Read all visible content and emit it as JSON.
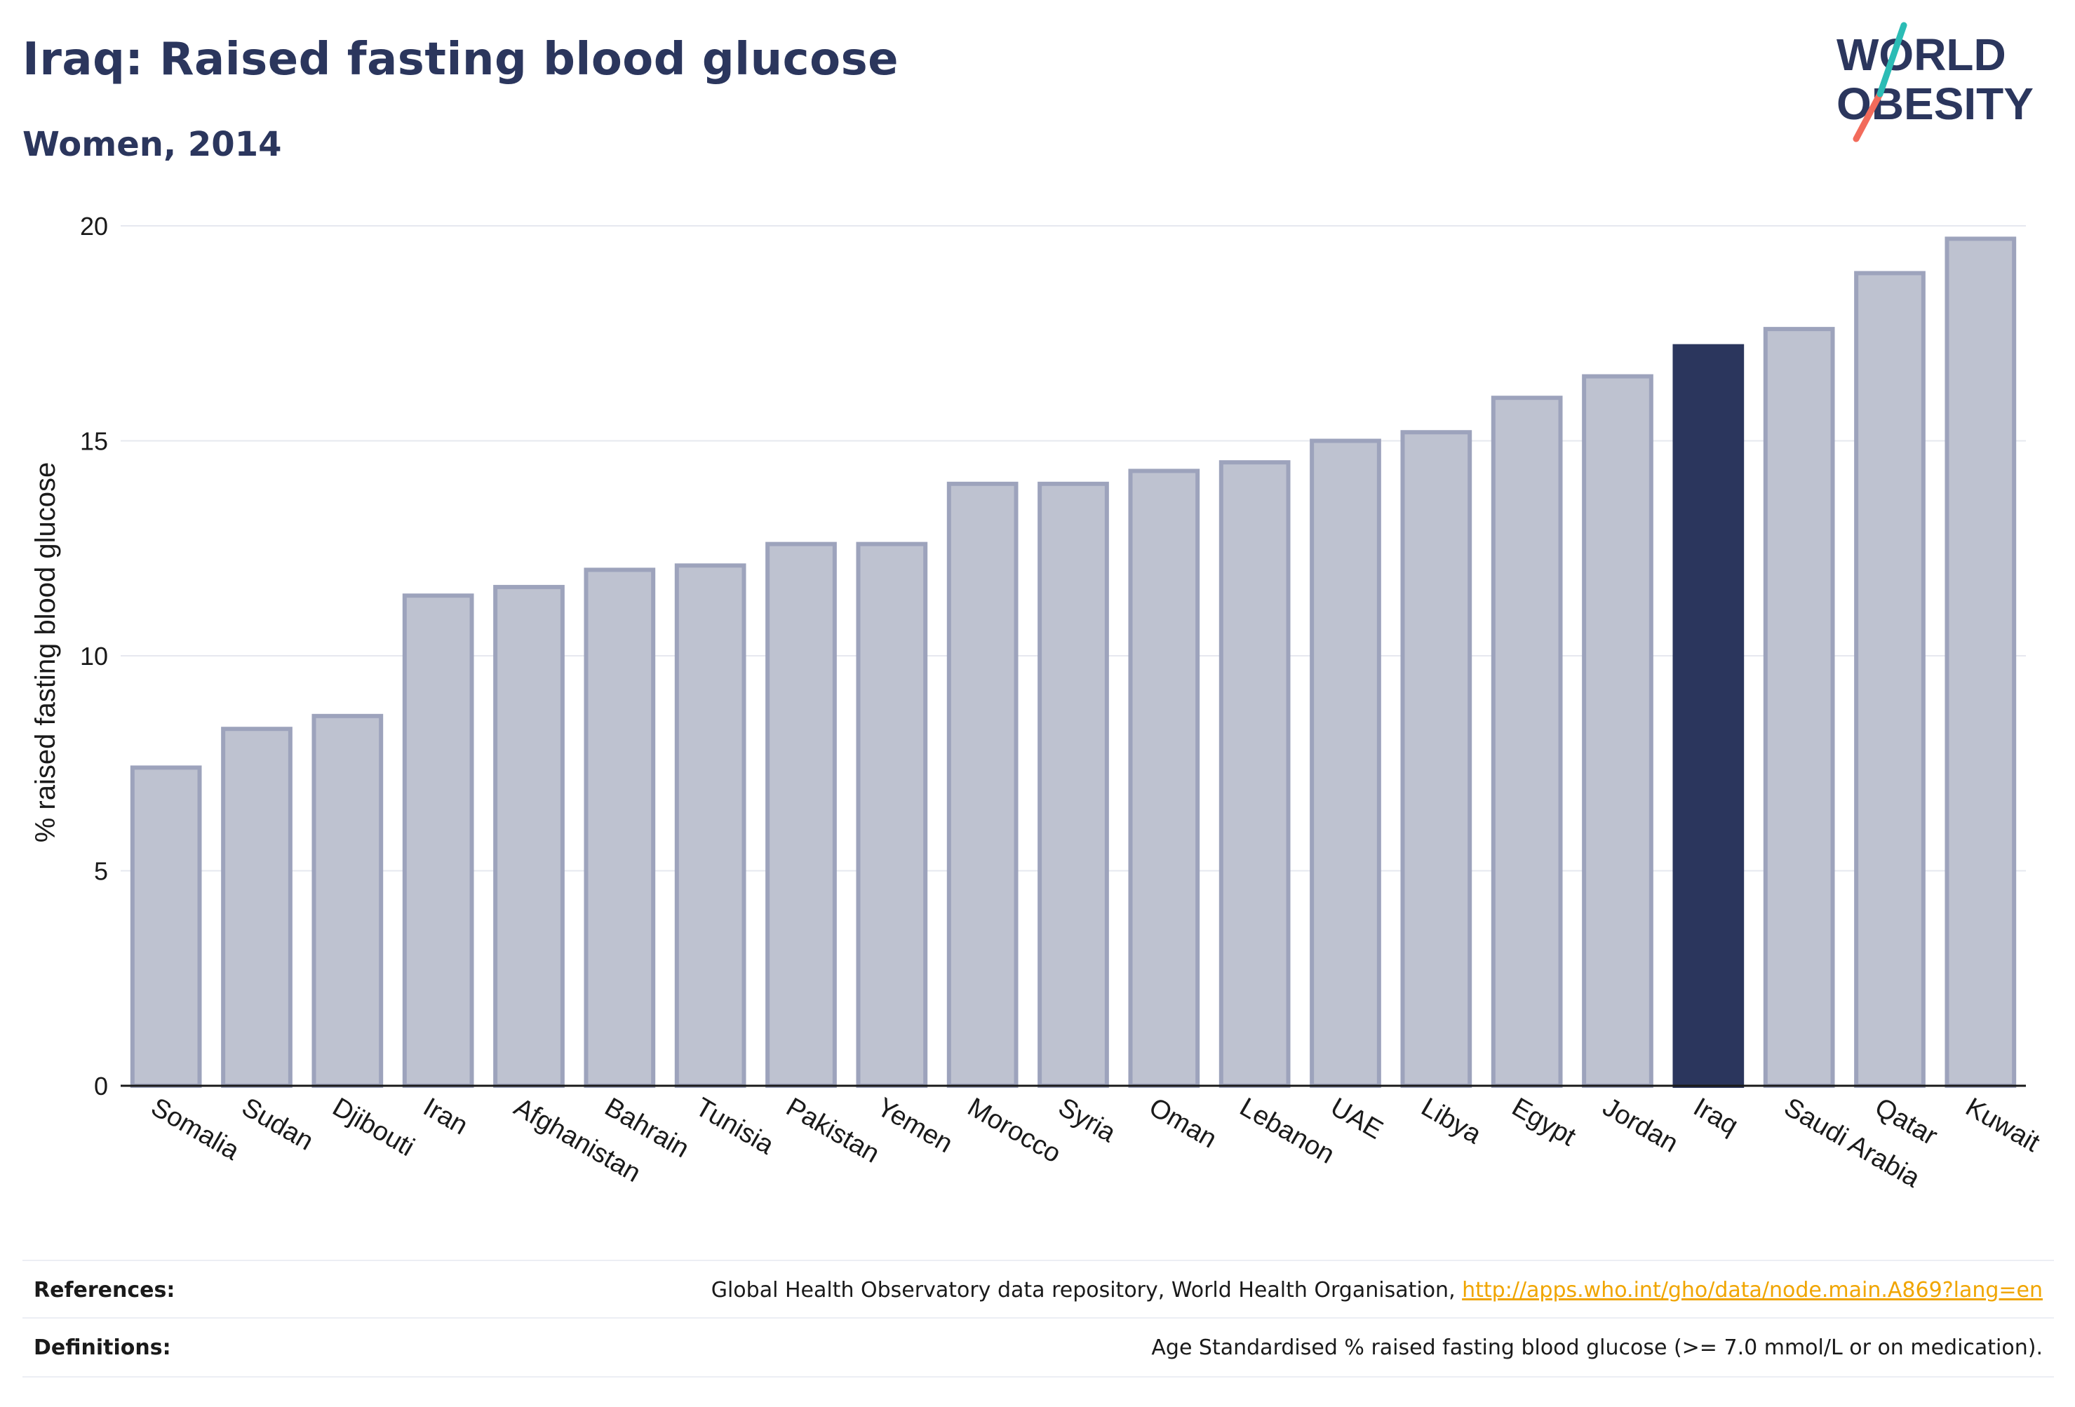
{
  "header": {
    "title": "Iraq: Raised fasting blood glucose",
    "subtitle": "Women, 2014"
  },
  "logo": {
    "line1": "WORLD",
    "line2": "OBESITY",
    "slash_colors": [
      "#2bbcb5",
      "#f26b5b"
    ]
  },
  "colors": {
    "bar_default": "#bec2d0",
    "bar_border": "#9da3bc",
    "bar_highlight": "#2b365d",
    "text": "#2b365d",
    "link": "#f0a500"
  },
  "chart_data": {
    "type": "bar",
    "ylabel": "% raised fasting blood glucose",
    "ylim": [
      0,
      20
    ],
    "yticks": [
      0,
      5,
      10,
      15,
      20
    ],
    "grid": true,
    "highlight": "Iraq",
    "categories": [
      "Somalia",
      "Sudan",
      "Djibouti",
      "Iran",
      "Afghanistan",
      "Bahrain",
      "Tunisia",
      "Pakistan",
      "Yemen",
      "Morocco",
      "Syria",
      "Oman",
      "Lebanon",
      "UAE",
      "Libya",
      "Egypt",
      "Jordan",
      "Iraq",
      "Saudi Arabia",
      "Qatar",
      "Kuwait"
    ],
    "values": [
      7.4,
      8.3,
      8.6,
      11.4,
      11.6,
      12.0,
      12.1,
      12.6,
      12.6,
      14.0,
      14.0,
      14.3,
      14.5,
      15.0,
      15.2,
      16.0,
      16.5,
      17.2,
      17.6,
      18.9,
      19.7
    ]
  },
  "footer": {
    "references_label": "References:",
    "references_text": "Global Health Observatory data repository, World Health Organisation, ",
    "references_link": "http://apps.who.int/gho/data/node.main.A869?lang=en",
    "definitions_label": "Definitions:",
    "definitions_text": "Age Standardised % raised fasting blood glucose (>= 7.0 mmol/L or on medication)."
  }
}
